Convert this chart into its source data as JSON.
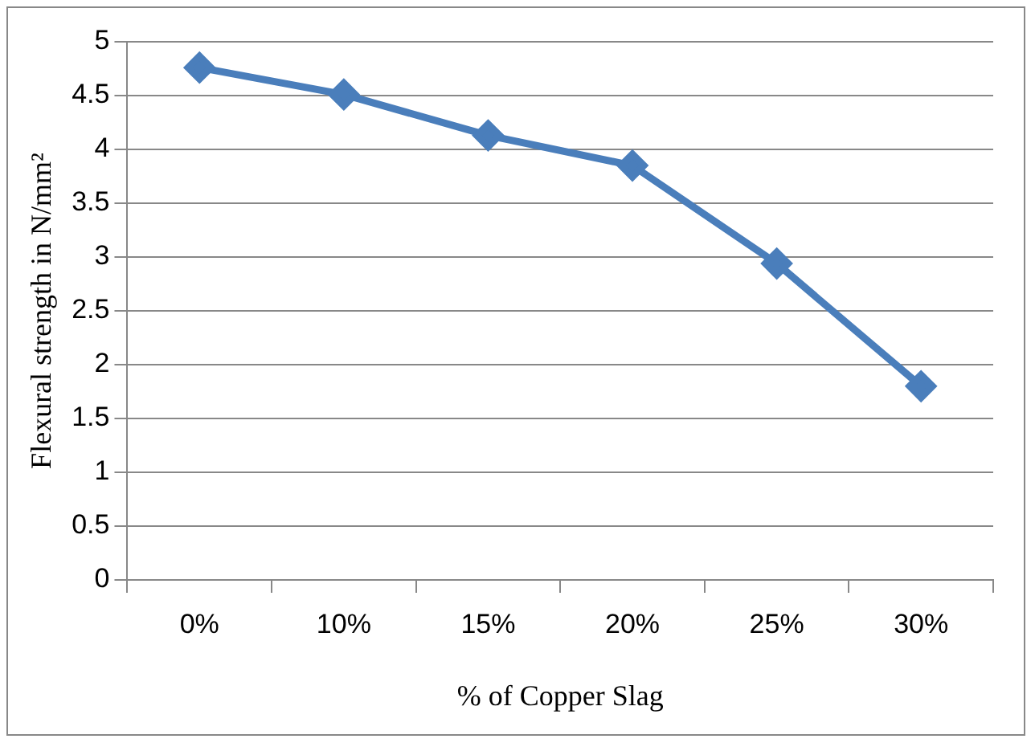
{
  "chart_data": {
    "type": "line",
    "xlabel": "% of Copper Slag",
    "ylabel": "Flexural strength in N/mm²",
    "categories": [
      "0%",
      "10%",
      "15%",
      "20%",
      "25%",
      "30%"
    ],
    "series": [
      {
        "color": "#4a7ebb",
        "values": [
          4.76,
          4.51,
          4.13,
          3.85,
          2.94,
          1.8
        ]
      }
    ],
    "ylim": [
      0,
      5
    ],
    "yticks": [
      0,
      0.5,
      1,
      1.5,
      2,
      2.5,
      3,
      3.5,
      4,
      4.5,
      5
    ],
    "grid": "y",
    "legend": false,
    "marker": "diamond",
    "line_style": "solid"
  }
}
